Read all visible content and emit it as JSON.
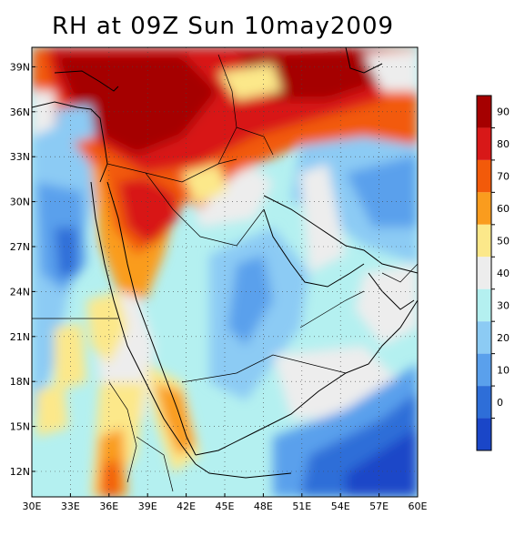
{
  "title": "RH at 09Z Sun 10may2009",
  "map": {
    "lon_range": [
      30,
      60
    ],
    "lat_range": [
      10.3,
      40.3
    ],
    "lon_labels": [
      "30E",
      "33E",
      "36E",
      "39E",
      "42E",
      "45E",
      "48E",
      "51E",
      "54E",
      "57E",
      "60E"
    ],
    "lat_labels": [
      "39N",
      "36N",
      "33N",
      "30N",
      "27N",
      "24N",
      "21N",
      "18N",
      "15N",
      "12N"
    ],
    "lon_values": [
      30,
      33,
      36,
      39,
      42,
      45,
      48,
      51,
      54,
      57,
      60
    ],
    "lat_values": [
      39,
      36,
      33,
      30,
      27,
      24,
      21,
      18,
      15,
      12
    ],
    "grid": "dotted"
  },
  "colorbar": {
    "labels": [
      "90",
      "80",
      "70",
      "60",
      "50",
      "40",
      "30",
      "20",
      "10",
      "0"
    ],
    "colors": [
      "#a50000",
      "#d81818",
      "#f25a0a",
      "#fa9c1e",
      "#fce88a",
      "#ededed",
      "#b4f0f0",
      "#8ccbf4",
      "#5aa0ec",
      "#2e6ed8",
      "#1a46c8"
    ]
  },
  "colors": {
    "dark_red": "#a50000",
    "red": "#d81818",
    "orange_red": "#f25a0a",
    "orange": "#fa9c1e",
    "yellow": "#fce88a",
    "grey": "#ededed",
    "cyan": "#b4f0f0",
    "light_blue": "#8ccbf4",
    "blue": "#5aa0ec",
    "dark_blue": "#2e6ed8",
    "deep_blue": "#1a46c8"
  }
}
